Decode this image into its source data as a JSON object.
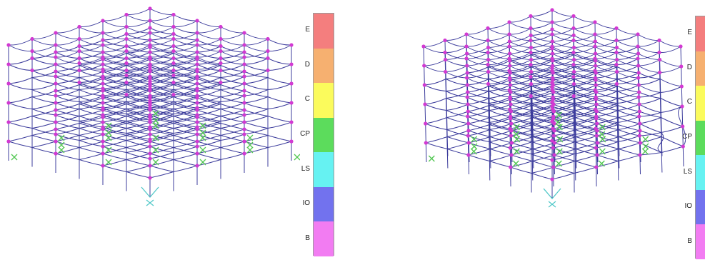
{
  "legend_levels": [
    {
      "label": "E",
      "color": "#f47e7e"
    },
    {
      "label": "D",
      "color": "#f6b070"
    },
    {
      "label": "C",
      "color": "#fbfb5c"
    },
    {
      "label": "CP",
      "color": "#5cdc5c"
    },
    {
      "label": "LS",
      "color": "#66f2f2"
    },
    {
      "label": "IO",
      "color": "#7272ee"
    },
    {
      "label": "B",
      "color": "#f27cf2"
    }
  ],
  "colors": {
    "frame": "#3c3c9c",
    "joint": "#d23ad2",
    "hinge": "#55c855",
    "support": "#52c8c8"
  },
  "models": [
    {
      "name": "undeformed-frame-model",
      "deformed": false
    },
    {
      "name": "deformed-frame-model",
      "deformed": true
    }
  ]
}
